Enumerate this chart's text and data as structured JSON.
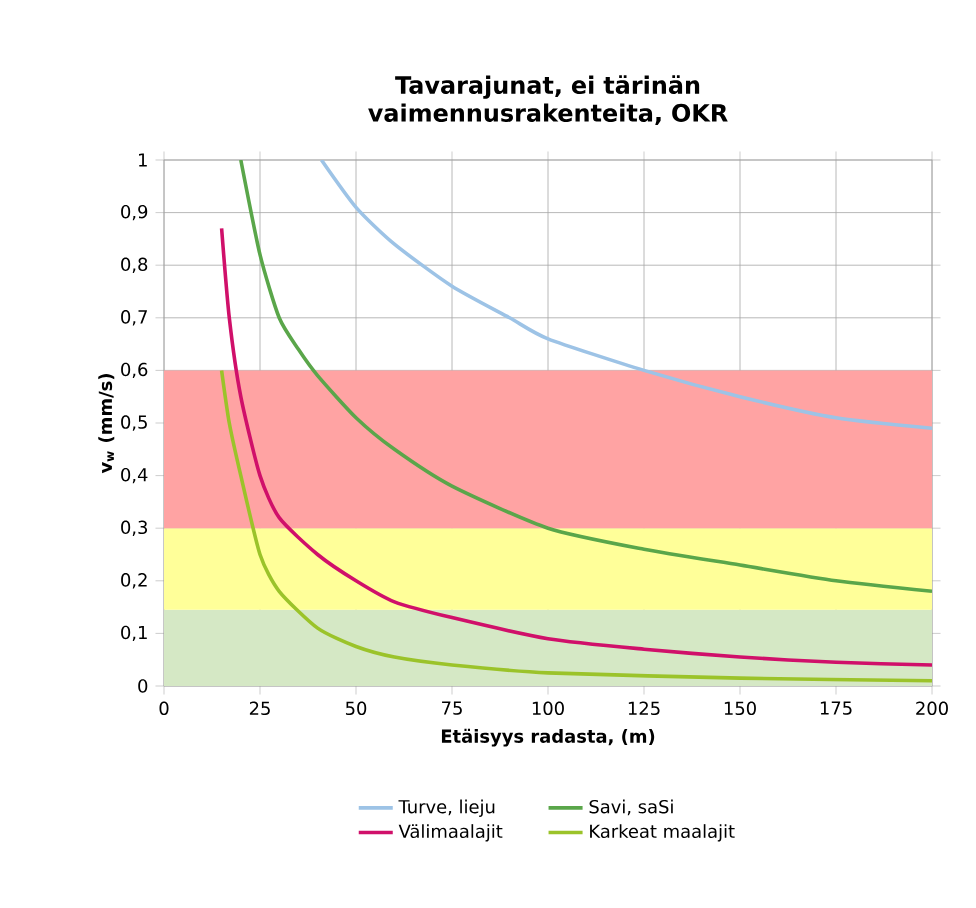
{
  "chart_data": {
    "type": "line",
    "title": "Tavarajunat, ei tärinän vaimennusrakenteita, OKR",
    "xlabel": "Etäisyys radasta, (m)",
    "ylabel": "v$_{w}$ (mm/s)",
    "xlim": [
      0,
      200
    ],
    "xticks": [
      0,
      25,
      50,
      75,
      100,
      125,
      150,
      175,
      200
    ],
    "ylim": [
      0,
      1
    ],
    "yticks": [
      0,
      {
        "value": 0.1,
        "label": "0,1"
      },
      {
        "value": 0.2,
        "label": "0,2"
      },
      {
        "value": 0.3,
        "label": "0,3"
      },
      {
        "value": 0.4,
        "label": "0,4"
      },
      {
        "value": 0.5,
        "label": "0,5"
      },
      {
        "value": 0.6,
        "label": "0,6"
      },
      {
        "value": 0.7,
        "label": "0,7"
      },
      {
        "value": 0.8,
        "label": "0,8"
      },
      {
        "value": 0.9,
        "label": "0,9"
      },
      1
    ],
    "grid": true,
    "legend": "bottom",
    "marker": "none",
    "line_style": "solid",
    "bands": [
      {
        "axis": "y",
        "from": 0,
        "to": 0.145,
        "color": "#d5e8c5"
      },
      {
        "axis": "y",
        "from": 0.145,
        "to": 0.3,
        "color": "#ffff99"
      },
      {
        "axis": "y",
        "from": 0.3,
        "to": 0.6,
        "color": "#ffa3a3"
      }
    ],
    "series": [
      {
        "name": "Turve, lieju",
        "color": "#9dc3e6",
        "x": [
          41,
          50,
          60,
          75,
          90,
          100,
          125,
          150,
          175,
          200
        ],
        "values": [
          1.0,
          0.91,
          0.84,
          0.76,
          0.7,
          0.66,
          0.6,
          0.55,
          0.51,
          0.49
        ]
      },
      {
        "name": "Savi, saSi",
        "color": "#5aa64a",
        "x": [
          20,
          25,
          30,
          35,
          40,
          50,
          60,
          75,
          100,
          125,
          150,
          175,
          200
        ],
        "values": [
          1.0,
          0.82,
          0.7,
          0.64,
          0.59,
          0.51,
          0.45,
          0.38,
          0.3,
          0.26,
          0.23,
          0.2,
          0.18
        ]
      },
      {
        "name": "Välimaalajit",
        "color": "#d0106a",
        "x": [
          15,
          17,
          20,
          25,
          30,
          40,
          50,
          60,
          75,
          100,
          125,
          150,
          175,
          200
        ],
        "values": [
          0.87,
          0.7,
          0.55,
          0.4,
          0.32,
          0.25,
          0.2,
          0.16,
          0.13,
          0.09,
          0.07,
          0.055,
          0.045,
          0.04
        ]
      },
      {
        "name": "Karkeat maalajit",
        "color": "#9bc32a",
        "x": [
          15,
          17,
          20,
          25,
          30,
          40,
          50,
          60,
          75,
          100,
          150,
          200
        ],
        "values": [
          0.6,
          0.5,
          0.4,
          0.25,
          0.18,
          0.11,
          0.075,
          0.055,
          0.04,
          0.025,
          0.015,
          0.01
        ]
      }
    ]
  }
}
